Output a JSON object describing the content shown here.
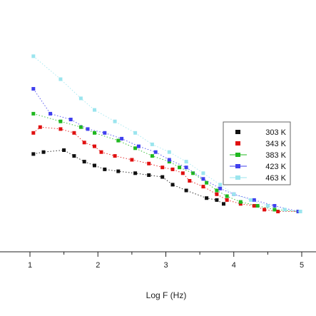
{
  "chart_data": {
    "type": "scatter",
    "title": "",
    "xlabel": "Log F (Hz)",
    "ylabel": "",
    "xlim": [
      1,
      5
    ],
    "ylim": [
      0,
      1
    ],
    "x_ticks": [
      "1",
      "2",
      "3",
      "4",
      "5"
    ],
    "grid": false,
    "legend_position": "right",
    "series": [
      {
        "name": "303 K",
        "color": "#111111",
        "points": [
          [
            1.05,
            0.51
          ],
          [
            1.2,
            0.52
          ],
          [
            1.5,
            0.53
          ],
          [
            1.65,
            0.5
          ],
          [
            1.8,
            0.47
          ],
          [
            1.95,
            0.45
          ],
          [
            2.1,
            0.43
          ],
          [
            2.3,
            0.42
          ],
          [
            2.55,
            0.41
          ],
          [
            2.75,
            0.4
          ],
          [
            2.95,
            0.39
          ],
          [
            3.1,
            0.35
          ],
          [
            3.3,
            0.32
          ],
          [
            3.6,
            0.28
          ],
          [
            3.75,
            0.27
          ],
          [
            3.85,
            0.25
          ]
        ]
      },
      {
        "name": "343 K",
        "color": "#e01010",
        "points": [
          [
            1.05,
            0.62
          ],
          [
            1.15,
            0.65
          ],
          [
            1.45,
            0.64
          ],
          [
            1.65,
            0.62
          ],
          [
            1.8,
            0.57
          ],
          [
            1.95,
            0.55
          ],
          [
            2.05,
            0.52
          ],
          [
            2.25,
            0.5
          ],
          [
            2.5,
            0.48
          ],
          [
            2.75,
            0.46
          ],
          [
            2.95,
            0.44
          ],
          [
            3.1,
            0.43
          ],
          [
            3.25,
            0.41
          ],
          [
            3.35,
            0.37
          ],
          [
            3.55,
            0.34
          ],
          [
            3.75,
            0.3
          ],
          [
            3.9,
            0.27
          ],
          [
            4.1,
            0.25
          ],
          [
            4.3,
            0.24
          ],
          [
            4.45,
            0.22
          ],
          [
            4.65,
            0.21
          ],
          [
            4.95,
            0.21
          ]
        ]
      },
      {
        "name": "383 K",
        "color": "#20b820",
        "points": [
          [
            1.05,
            0.72
          ],
          [
            1.45,
            0.68
          ],
          [
            1.75,
            0.65
          ],
          [
            1.95,
            0.62
          ],
          [
            2.3,
            0.58
          ],
          [
            2.55,
            0.54
          ],
          [
            2.8,
            0.5
          ],
          [
            3.05,
            0.47
          ],
          [
            3.2,
            0.44
          ],
          [
            3.4,
            0.41
          ],
          [
            3.6,
            0.36
          ],
          [
            3.75,
            0.32
          ],
          [
            3.9,
            0.29
          ],
          [
            4.1,
            0.26
          ],
          [
            4.35,
            0.24
          ],
          [
            4.6,
            0.22
          ],
          [
            4.95,
            0.21
          ]
        ]
      },
      {
        "name": "423 K",
        "color": "#4040ee",
        "points": [
          [
            1.05,
            0.85
          ],
          [
            1.3,
            0.72
          ],
          [
            1.6,
            0.69
          ],
          [
            1.85,
            0.64
          ],
          [
            2.1,
            0.62
          ],
          [
            2.35,
            0.59
          ],
          [
            2.6,
            0.55
          ],
          [
            2.85,
            0.52
          ],
          [
            3.05,
            0.48
          ],
          [
            3.3,
            0.44
          ],
          [
            3.55,
            0.38
          ],
          [
            3.8,
            0.33
          ],
          [
            4.0,
            0.3
          ],
          [
            4.3,
            0.27
          ],
          [
            4.6,
            0.24
          ],
          [
            4.95,
            0.21
          ]
        ]
      },
      {
        "name": "463 K",
        "color": "#9be5ee",
        "points": [
          [
            1.05,
            1.02
          ],
          [
            1.45,
            0.9
          ],
          [
            1.75,
            0.8
          ],
          [
            1.95,
            0.74
          ],
          [
            2.25,
            0.68
          ],
          [
            2.55,
            0.62
          ],
          [
            2.8,
            0.56
          ],
          [
            3.05,
            0.52
          ],
          [
            3.3,
            0.47
          ],
          [
            3.55,
            0.41
          ],
          [
            3.8,
            0.35
          ],
          [
            4.0,
            0.3
          ],
          [
            4.25,
            0.27
          ],
          [
            4.5,
            0.24
          ],
          [
            4.75,
            0.22
          ],
          [
            4.98,
            0.21
          ]
        ]
      }
    ]
  }
}
